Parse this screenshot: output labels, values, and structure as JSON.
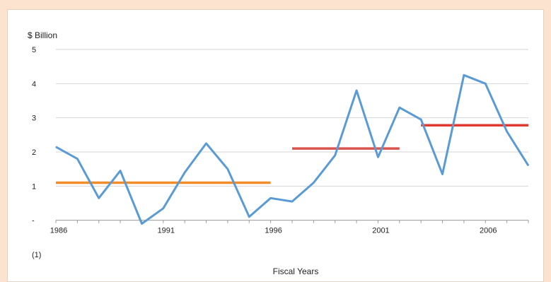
{
  "chart_data": {
    "type": "line",
    "ylabel": "$ Billion",
    "xlabel": "Fiscal Years",
    "ylim": [
      -1,
      5
    ],
    "yticks": [
      {
        "value": 5,
        "label": "5"
      },
      {
        "value": 4,
        "label": "4"
      },
      {
        "value": 3,
        "label": "3"
      },
      {
        "value": 2,
        "label": "2"
      },
      {
        "value": 1,
        "label": "1"
      },
      {
        "value": 0,
        "label": "-"
      },
      {
        "value": -1,
        "label": "(1)"
      }
    ],
    "xlim": [
      1986,
      2008
    ],
    "xticks": [
      {
        "value": 1986,
        "label": "1986"
      },
      {
        "value": 1991,
        "label": "1991"
      },
      {
        "value": 1996,
        "label": "1996"
      },
      {
        "value": 2001,
        "label": "2001"
      },
      {
        "value": 2006,
        "label": "2006"
      }
    ],
    "grid": true,
    "series": [
      {
        "color": "#5b9bd5",
        "x": [
          1986,
          1987,
          1988,
          1989,
          1990,
          1991,
          1992,
          1993,
          1994,
          1995,
          1996,
          1997,
          1998,
          1999,
          2000,
          2001,
          2002,
          2003,
          2004,
          2005,
          2006,
          2007,
          2008
        ],
        "y": [
          2.15,
          1.8,
          0.65,
          1.45,
          -0.1,
          0.35,
          1.4,
          2.25,
          1.5,
          0.1,
          0.65,
          0.55,
          1.1,
          1.9,
          3.8,
          1.85,
          3.3,
          2.95,
          1.35,
          4.25,
          4.0,
          2.6,
          1.6
        ]
      }
    ],
    "reference_lines": [
      {
        "x_start": 1986,
        "x_end": 1996,
        "y": 1.1,
        "color": "#f28c28"
      },
      {
        "x_start": 1997,
        "x_end": 2002,
        "y": 2.1,
        "color": "#d9534f"
      },
      {
        "x_start": 2003,
        "x_end": 2008,
        "y": 2.78,
        "color": "#e03a2e"
      }
    ]
  }
}
